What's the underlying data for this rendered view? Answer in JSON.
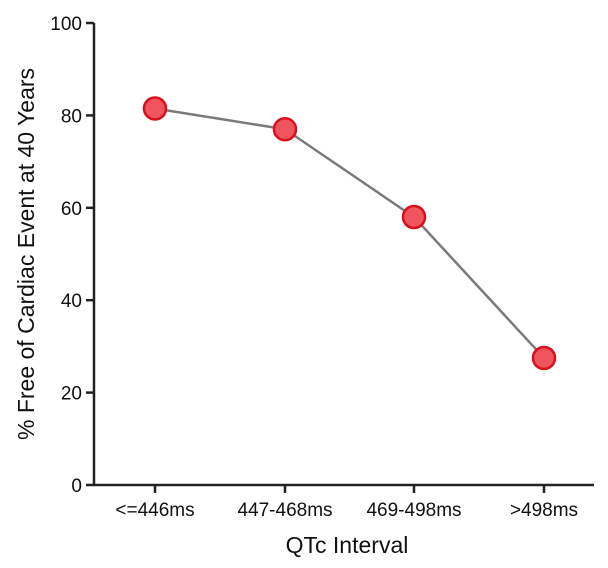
{
  "chart_data": {
    "type": "line",
    "title": "",
    "xlabel": "QTc Interval",
    "ylabel": "% Free of Cardiac Event at 40 Years",
    "categories": [
      "<=446ms",
      "447-468ms",
      "469-498ms",
      ">498ms"
    ],
    "series": [
      {
        "values": [
          81.5,
          77,
          58,
          27.5
        ]
      }
    ],
    "ylim": [
      0,
      100
    ],
    "yticks": [
      0,
      20,
      40,
      60,
      80,
      100
    ],
    "grid": false,
    "legend": "none",
    "colors": {
      "line": "#7a7a7a",
      "marker_fill": "#f0555d",
      "marker_stroke": "#d8101c",
      "axis": "#222222"
    }
  }
}
